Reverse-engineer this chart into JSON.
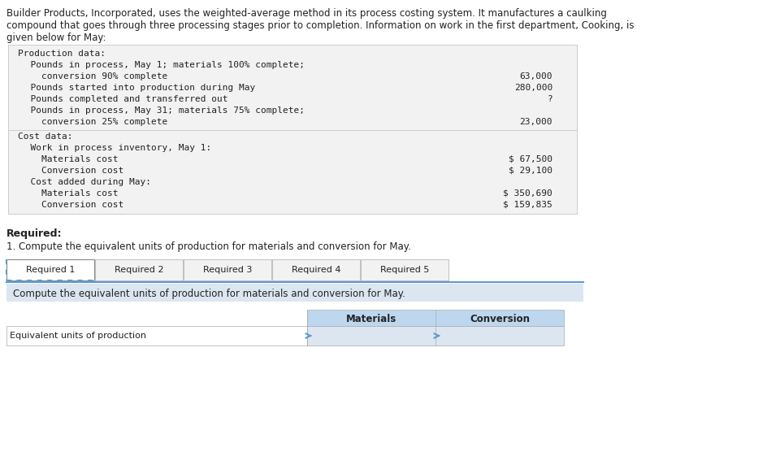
{
  "bg_color": "#ffffff",
  "intro_text": "Builder Products, Incorporated, uses the weighted-average method in its process costing system. It manufactures a caulking\ncompound that goes through three processing stages prior to completion. Information on work in the first department, Cooking, is\ngiven below for May:",
  "production_data_label": "Production data:",
  "production_rows": [
    [
      "  Pounds in process, May 1; materials 100% complete;",
      ""
    ],
    [
      "    conversion 90% complete",
      "63,000"
    ],
    [
      "  Pounds started into production during May",
      "280,000"
    ],
    [
      "  Pounds completed and transferred out",
      "?"
    ],
    [
      "  Pounds in process, May 31; materials 75% complete;",
      ""
    ],
    [
      "    conversion 25% complete",
      "23,000"
    ]
  ],
  "cost_data_label": "Cost data:",
  "cost_rows": [
    [
      "  Work in process inventory, May 1:",
      ""
    ],
    [
      "    Materials cost",
      "$ 67,500"
    ],
    [
      "    Conversion cost",
      "$ 29,100"
    ],
    [
      "  Cost added during May:",
      ""
    ],
    [
      "    Materials cost",
      "$ 350,690"
    ],
    [
      "    Conversion cost",
      "$ 159,835"
    ]
  ],
  "required_label": "Required:",
  "required_text": "1. Compute the equivalent units of production for materials and conversion for May.",
  "tabs": [
    "Required 1",
    "Required 2",
    "Required 3",
    "Required 4",
    "Required 5"
  ],
  "active_tab": 0,
  "blue_bar_text": "Compute the equivalent units of production for materials and conversion for May.",
  "blue_bar_bg": "#dce6f1",
  "table_header_labels": [
    "",
    "Materials",
    "Conversion"
  ],
  "table_row_label": "Equivalent units of production",
  "table_header_bg": "#bdd7ee",
  "tab_bg": "#f2f2f2",
  "active_tab_bg": "#ffffff"
}
